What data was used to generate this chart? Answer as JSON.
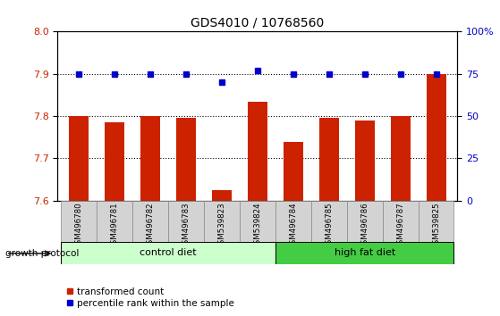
{
  "title": "GDS4010 / 10768560",
  "samples": [
    "GSM496780",
    "GSM496781",
    "GSM496782",
    "GSM496783",
    "GSM539823",
    "GSM539824",
    "GSM496784",
    "GSM496785",
    "GSM496786",
    "GSM496787",
    "GSM539825"
  ],
  "red_values": [
    7.8,
    7.785,
    7.8,
    7.795,
    7.625,
    7.835,
    7.74,
    7.795,
    7.79,
    7.8,
    7.9
  ],
  "blue_values": [
    75,
    75,
    75,
    75,
    70,
    77,
    75,
    75,
    75,
    75,
    75
  ],
  "ylim_left": [
    7.6,
    8.0
  ],
  "ylim_right": [
    0,
    100
  ],
  "yticks_left": [
    7.6,
    7.7,
    7.8,
    7.9,
    8.0
  ],
  "yticks_right": [
    0,
    25,
    50,
    75,
    100
  ],
  "bar_color": "#cc2200",
  "dot_color": "#0000cc",
  "control_color": "#ccffcc",
  "hfd_color": "#44cc44",
  "control_label": "control diet",
  "hfd_label": "high fat diet",
  "n_control": 6,
  "n_hfd": 5,
  "legend_red": "transformed count",
  "legend_blue": "percentile rank within the sample",
  "bar_width": 0.55,
  "protocol_label": "growth protocol",
  "right_tick_color": "#0000cc",
  "left_tick_color": "#cc2200",
  "label_fontsize": 7.5,
  "tick_fontsize": 8
}
